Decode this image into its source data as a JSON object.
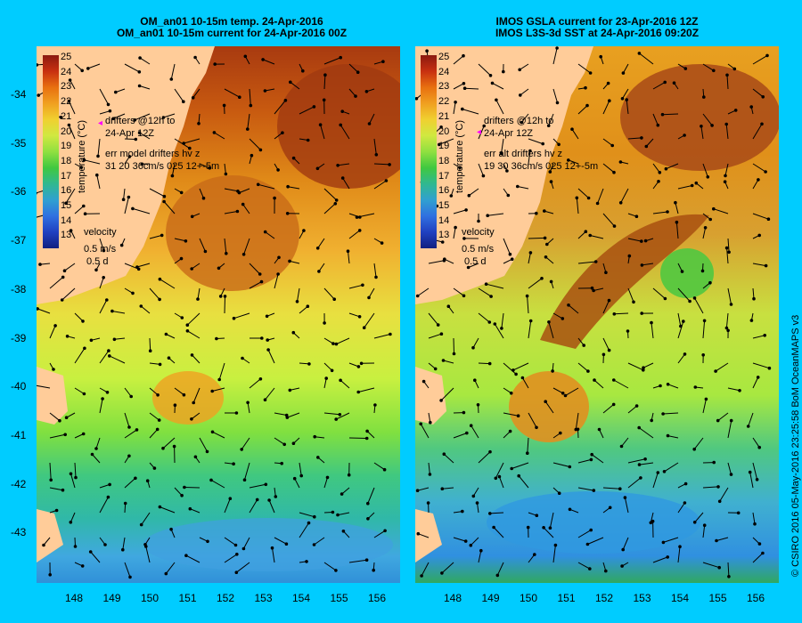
{
  "colors": {
    "background": "#00ccff",
    "land": "#ffcc99",
    "arrow": "#000000",
    "drifter": "#ff00ff"
  },
  "left_panel": {
    "title_line1": "OM_an01 10-15m temp. 24-Apr-2016",
    "title_line2": "OM_an01 10-15m current for 24-Apr-2016 00Z",
    "drifters_label_1": "drifters @12h to",
    "drifters_label_2": "24-Apr 12Z",
    "err_label": "err model drifters hv z",
    "err_values": "31 20 36cm/s 025 12+-5m",
    "velocity_label": "velocity",
    "velocity_speed": "0.5 m/s",
    "velocity_time": "0.5 d"
  },
  "right_panel": {
    "title_line1": "IMOS GSLA current for 23-Apr-2016 12Z",
    "title_line2": "IMOS L3S-3d SST at 24-Apr-2016 09:20Z",
    "drifters_label_1": "drifters @12h to",
    "drifters_label_2": "24-Apr 12Z",
    "err_label": "err alt drifters hv z",
    "err_values": "19 30 36cm/s 025 12+-5m",
    "velocity_label": "velocity",
    "velocity_speed": "0.5 m/s",
    "velocity_time": "0.5 d"
  },
  "colorbar": {
    "title": "temperature (°C)",
    "labels": [
      "25",
      "24",
      "23",
      "22",
      "21",
      "20",
      "19",
      "18",
      "17",
      "16",
      "15",
      "14",
      "13"
    ]
  },
  "axes": {
    "lat_labels": [
      "-34",
      "-35",
      "-36",
      "-37",
      "-38",
      "-39",
      "-40",
      "-41",
      "-42",
      "-43"
    ],
    "lon_labels": [
      "148",
      "149",
      "150",
      "151",
      "152",
      "153",
      "154",
      "155",
      "156"
    ]
  },
  "credit": "© CSIRO 2016   05-May-2016 23:25:58 BoM OceanMAPS v3"
}
